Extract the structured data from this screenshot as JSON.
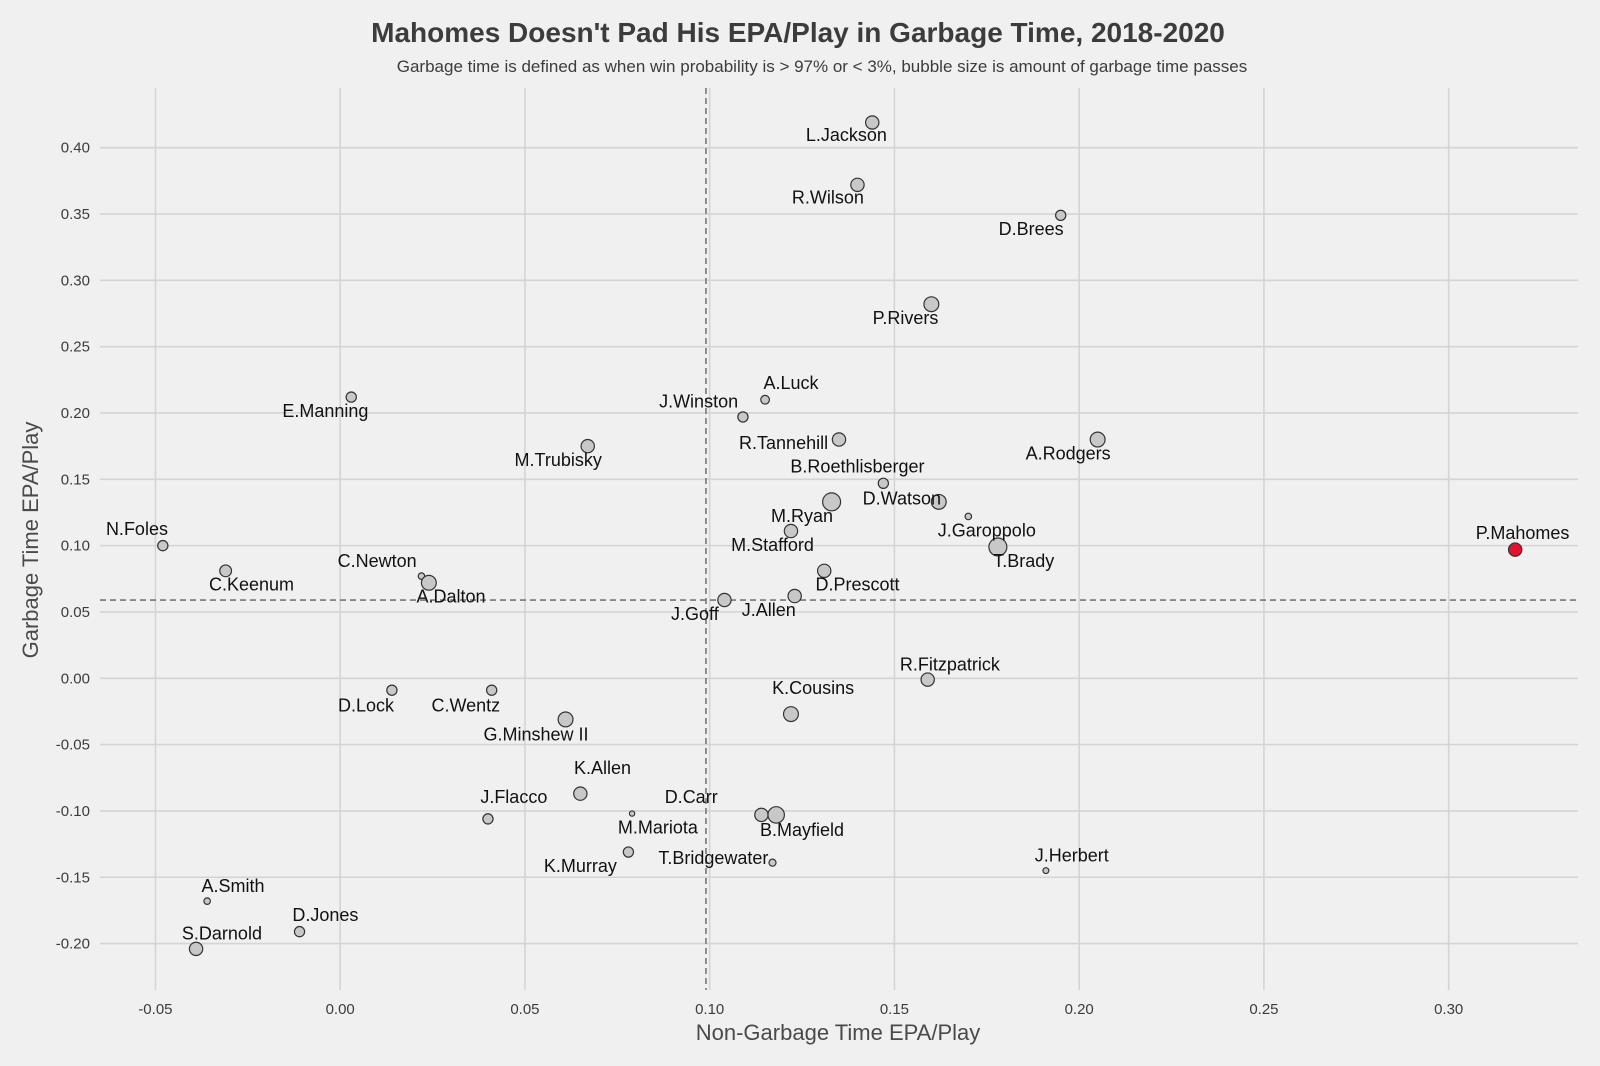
{
  "chart_data": {
    "type": "scatter",
    "title": "Mahomes Doesn't Pad His EPA/Play in Garbage Time, 2018-2020",
    "subtitle": "Garbage time is defined as when win probability is > 97% or < 3%, bubble size is amount of garbage time passes",
    "xlabel": "Non-Garbage Time EPA/Play",
    "ylabel": "Garbage Time EPA/Play",
    "xlim": [
      -0.065,
      0.335
    ],
    "ylim": [
      -0.235,
      0.445
    ],
    "xticks": [
      "-0.05",
      "0.00",
      "0.05",
      "0.10",
      "0.15",
      "0.20",
      "0.25",
      "0.30"
    ],
    "xtick_values": [
      -0.05,
      0,
      0.05,
      0.1,
      0.15,
      0.2,
      0.25,
      0.3
    ],
    "yticks": [
      "0.40",
      "0.35",
      "0.30",
      "0.25",
      "0.20",
      "0.15",
      "0.10",
      "0.05",
      "0.00",
      "-0.05",
      "-0.10",
      "-0.15",
      "-0.20"
    ],
    "ytick_values": [
      0.4,
      0.35,
      0.3,
      0.25,
      0.2,
      0.15,
      0.1,
      0.05,
      0,
      -0.05,
      -0.1,
      -0.15,
      -0.2
    ],
    "grid": true,
    "reference_lines": {
      "x": 0.099,
      "y": 0.059
    },
    "colors": {
      "default_fill": "#c8c8c8",
      "highlight_fill": "#e0122f",
      "stroke": "#333333"
    },
    "points": [
      {
        "name": "L.Jackson",
        "x": 0.144,
        "y": 0.419,
        "size": 3
      },
      {
        "name": "R.Wilson",
        "x": 0.14,
        "y": 0.372,
        "size": 3
      },
      {
        "name": "D.Brees",
        "x": 0.195,
        "y": 0.349,
        "size": 2
      },
      {
        "name": "P.Rivers",
        "x": 0.16,
        "y": 0.282,
        "size": 3.5
      },
      {
        "name": "E.Manning",
        "x": 0.003,
        "y": 0.212,
        "size": 2
      },
      {
        "name": "A.Luck",
        "x": 0.115,
        "y": 0.21,
        "size": 1.5
      },
      {
        "name": "J.Winston",
        "x": 0.109,
        "y": 0.197,
        "size": 2
      },
      {
        "name": "R.Tannehill",
        "x": 0.135,
        "y": 0.18,
        "size": 3
      },
      {
        "name": "A.Rodgers",
        "x": 0.205,
        "y": 0.18,
        "size": 3.5
      },
      {
        "name": "M.Trubisky",
        "x": 0.067,
        "y": 0.175,
        "size": 3
      },
      {
        "name": "B.Roethlisberger",
        "x": 0.147,
        "y": 0.147,
        "size": 2
      },
      {
        "name": "D.Watson",
        "x": 0.162,
        "y": 0.133,
        "size": 3.5
      },
      {
        "name": "B.Roethlisberger-large",
        "x": 0.133,
        "y": 0.133,
        "size": 4.5
      },
      {
        "name": "J.Garoppolo",
        "x": 0.17,
        "y": 0.122,
        "size": 0.8
      },
      {
        "name": "M.Ryan",
        "x": 0.122,
        "y": 0.111,
        "size": 3
      },
      {
        "name": "N.Foles",
        "x": -0.048,
        "y": 0.1,
        "size": 2
      },
      {
        "name": "T.Brady",
        "x": 0.178,
        "y": 0.099,
        "size": 4.5
      },
      {
        "name": "P.Mahomes",
        "x": 0.318,
        "y": 0.097,
        "size": 3,
        "highlight": true
      },
      {
        "name": "C.Keenum",
        "x": -0.031,
        "y": 0.081,
        "size": 2.5
      },
      {
        "name": "M.Stafford",
        "x": 0.131,
        "y": 0.081,
        "size": 3
      },
      {
        "name": "C.Newton",
        "x": 0.022,
        "y": 0.077,
        "size": 0.8
      },
      {
        "name": "A.Dalton",
        "x": 0.024,
        "y": 0.072,
        "size": 3.5
      },
      {
        "name": "D.Prescott",
        "x": 0.123,
        "y": 0.062,
        "size": 3
      },
      {
        "name": "J.Goff",
        "x": 0.104,
        "y": 0.059,
        "size": 3
      },
      {
        "name": "R.Fitzpatrick",
        "x": 0.159,
        "y": -0.001,
        "size": 3
      },
      {
        "name": "D.Lock",
        "x": 0.014,
        "y": -0.009,
        "size": 2
      },
      {
        "name": "C.Wentz",
        "x": 0.041,
        "y": -0.009,
        "size": 2
      },
      {
        "name": "K.Cousins",
        "x": 0.122,
        "y": -0.027,
        "size": 3.5
      },
      {
        "name": "G.Minshew II",
        "x": 0.061,
        "y": -0.031,
        "size": 3.5
      },
      {
        "name": "K.Allen",
        "x": 0.065,
        "y": -0.087,
        "size": 3
      },
      {
        "name": "D.Carr",
        "x": 0.114,
        "y": -0.103,
        "size": 3
      },
      {
        "name": "B.Mayfield",
        "x": 0.118,
        "y": -0.103,
        "size": 4
      },
      {
        "name": "M.Mariota",
        "x": 0.079,
        "y": -0.102,
        "size": 0.4
      },
      {
        "name": "J.Flacco",
        "x": 0.04,
        "y": -0.106,
        "size": 2
      },
      {
        "name": "K.Murray",
        "x": 0.078,
        "y": -0.131,
        "size": 2
      },
      {
        "name": "T.Bridgewater",
        "x": 0.117,
        "y": -0.139,
        "size": 1
      },
      {
        "name": "J.Herbert",
        "x": 0.191,
        "y": -0.145,
        "size": 0.6
      },
      {
        "name": "A.Smith",
        "x": -0.036,
        "y": -0.168,
        "size": 0.8
      },
      {
        "name": "D.Jones",
        "x": -0.011,
        "y": -0.191,
        "size": 2
      },
      {
        "name": "S.Darnold",
        "x": -0.039,
        "y": -0.204,
        "size": 3
      }
    ],
    "labels": [
      {
        "text": "L.Jackson",
        "x": 0.137,
        "y": 0.405
      },
      {
        "text": "R.Wilson",
        "x": 0.132,
        "y": 0.358
      },
      {
        "text": "D.Brees",
        "x": 0.187,
        "y": 0.334
      },
      {
        "text": "P.Rivers",
        "x": 0.153,
        "y": 0.267
      },
      {
        "text": "E.Manning",
        "x": -0.004,
        "y": 0.197
      },
      {
        "text": "A.Luck",
        "x": 0.122,
        "y": 0.218
      },
      {
        "text": "J.Winston",
        "x": 0.097,
        "y": 0.204
      },
      {
        "text": "R.Tannehill",
        "x": 0.12,
        "y": 0.173
      },
      {
        "text": "A.Rodgers",
        "x": 0.197,
        "y": 0.165
      },
      {
        "text": "M.Trubisky",
        "x": 0.059,
        "y": 0.16
      },
      {
        "text": "B.Roethlisberger",
        "x": 0.14,
        "y": 0.155
      },
      {
        "text": "D.Watson",
        "x": 0.152,
        "y": 0.131
      },
      {
        "text": "J.Garoppolo",
        "x": 0.175,
        "y": 0.107
      },
      {
        "text": "M.Ryan",
        "x": 0.125,
        "y": 0.118
      },
      {
        "text": "M.Stafford",
        "x": 0.117,
        "y": 0.096
      },
      {
        "text": "N.Foles",
        "x": -0.055,
        "y": 0.108
      },
      {
        "text": "T.Brady",
        "x": 0.185,
        "y": 0.084
      },
      {
        "text": "P.Mahomes",
        "x": 0.32,
        "y": 0.105
      },
      {
        "text": "C.Keenum",
        "x": -0.024,
        "y": 0.066
      },
      {
        "text": "C.Newton",
        "x": 0.01,
        "y": 0.084
      },
      {
        "text": "A.Dalton",
        "x": 0.03,
        "y": 0.057
      },
      {
        "text": "D.Prescott",
        "x": 0.14,
        "y": 0.066
      },
      {
        "text": "J.Goff",
        "x": 0.096,
        "y": 0.044
      },
      {
        "text": "J.Allen",
        "x": 0.116,
        "y": 0.047
      },
      {
        "text": "R.Fitzpatrick",
        "x": 0.165,
        "y": 0.006
      },
      {
        "text": "D.Lock",
        "x": 0.007,
        "y": -0.025
      },
      {
        "text": "C.Wentz",
        "x": 0.034,
        "y": -0.025
      },
      {
        "text": "K.Cousins",
        "x": 0.128,
        "y": -0.012
      },
      {
        "text": "G.Minshew II",
        "x": 0.053,
        "y": -0.047
      },
      {
        "text": "K.Allen",
        "x": 0.071,
        "y": -0.072
      },
      {
        "text": "D.Carr",
        "x": 0.095,
        "y": -0.094
      },
      {
        "text": "B.Mayfield",
        "x": 0.125,
        "y": -0.119
      },
      {
        "text": "M.Mariota",
        "x": 0.086,
        "y": -0.117
      },
      {
        "text": "J.Flacco",
        "x": 0.047,
        "y": -0.094
      },
      {
        "text": "K.Murray",
        "x": 0.065,
        "y": -0.146
      },
      {
        "text": "T.Bridgewater",
        "x": 0.101,
        "y": -0.14
      },
      {
        "text": "J.Herbert",
        "x": 0.198,
        "y": -0.138
      },
      {
        "text": "A.Smith",
        "x": -0.029,
        "y": -0.161
      },
      {
        "text": "D.Jones",
        "x": -0.004,
        "y": -0.183
      },
      {
        "text": "S.Darnold",
        "x": -0.032,
        "y": -0.197
      }
    ]
  }
}
